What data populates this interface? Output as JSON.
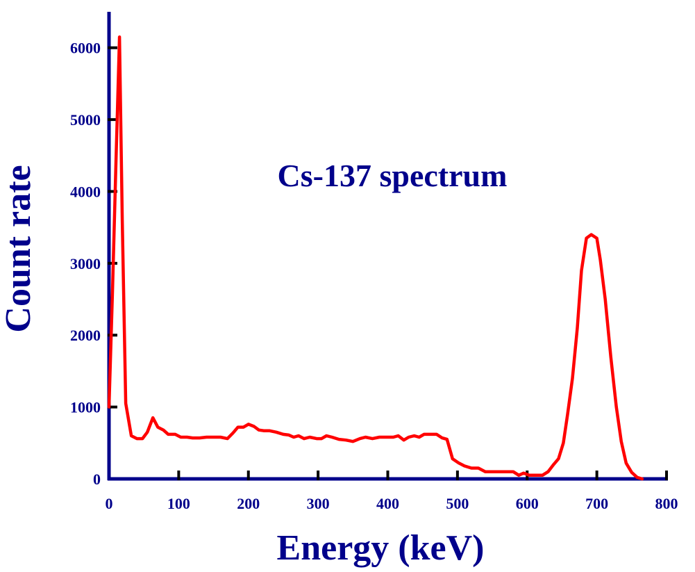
{
  "chart_data": {
    "type": "line",
    "title": "Cs-137 spectrum",
    "xlabel": "Energy (keV)",
    "ylabel": "Count rate",
    "xlim": [
      0,
      800
    ],
    "ylim": [
      0,
      6500
    ],
    "xticks": [
      0,
      100,
      200,
      300,
      400,
      500,
      600,
      700,
      800
    ],
    "yticks": [
      0,
      1000,
      2000,
      3000,
      4000,
      5000,
      6000
    ],
    "xtick_labels": [
      "0",
      "100",
      "200",
      "300",
      "400",
      "500",
      "600",
      "700",
      "800"
    ],
    "ytick_labels": [
      "0",
      "1000",
      "2000",
      "3000",
      "4000",
      "5000",
      "6000"
    ],
    "grid": false,
    "colors": {
      "axis": "#00008b",
      "text": "#00008b",
      "line": "#ff0000"
    },
    "series": [
      {
        "x": [
          0,
          5,
          10,
          15,
          19,
          24,
          32,
          40,
          48,
          55,
          63,
          70,
          78,
          85,
          95,
          103,
          112,
          120,
          130,
          140,
          150,
          160,
          170,
          178,
          185,
          193,
          200,
          208,
          215,
          222,
          230,
          240,
          250,
          258,
          265,
          272,
          280,
          288,
          298,
          305,
          312,
          320,
          330,
          340,
          350,
          360,
          368,
          378,
          388,
          398,
          408,
          415,
          423,
          430,
          438,
          445,
          452,
          460,
          470,
          478,
          485,
          493,
          502,
          510,
          520,
          530,
          540,
          550,
          560,
          570,
          580,
          588,
          595,
          603,
          612,
          622,
          630,
          638,
          645,
          652,
          658,
          665,
          672,
          678,
          685,
          692,
          700,
          705,
          712,
          720,
          728,
          735,
          742,
          750,
          758,
          765
        ],
        "y": [
          1000,
          2600,
          4400,
          6150,
          3600,
          1050,
          600,
          560,
          560,
          650,
          850,
          720,
          680,
          620,
          620,
          580,
          580,
          570,
          570,
          580,
          580,
          580,
          560,
          640,
          720,
          720,
          760,
          730,
          680,
          670,
          670,
          650,
          620,
          610,
          580,
          600,
          560,
          580,
          560,
          560,
          600,
          580,
          550,
          540,
          520,
          560,
          580,
          560,
          580,
          580,
          580,
          600,
          540,
          580,
          600,
          580,
          620,
          620,
          620,
          570,
          550,
          280,
          220,
          180,
          150,
          150,
          100,
          100,
          100,
          100,
          100,
          50,
          80,
          50,
          50,
          50,
          100,
          200,
          280,
          500,
          900,
          1400,
          2100,
          2900,
          3350,
          3400,
          3350,
          3050,
          2500,
          1700,
          1000,
          520,
          220,
          90,
          20,
          0
        ]
      }
    ]
  }
}
